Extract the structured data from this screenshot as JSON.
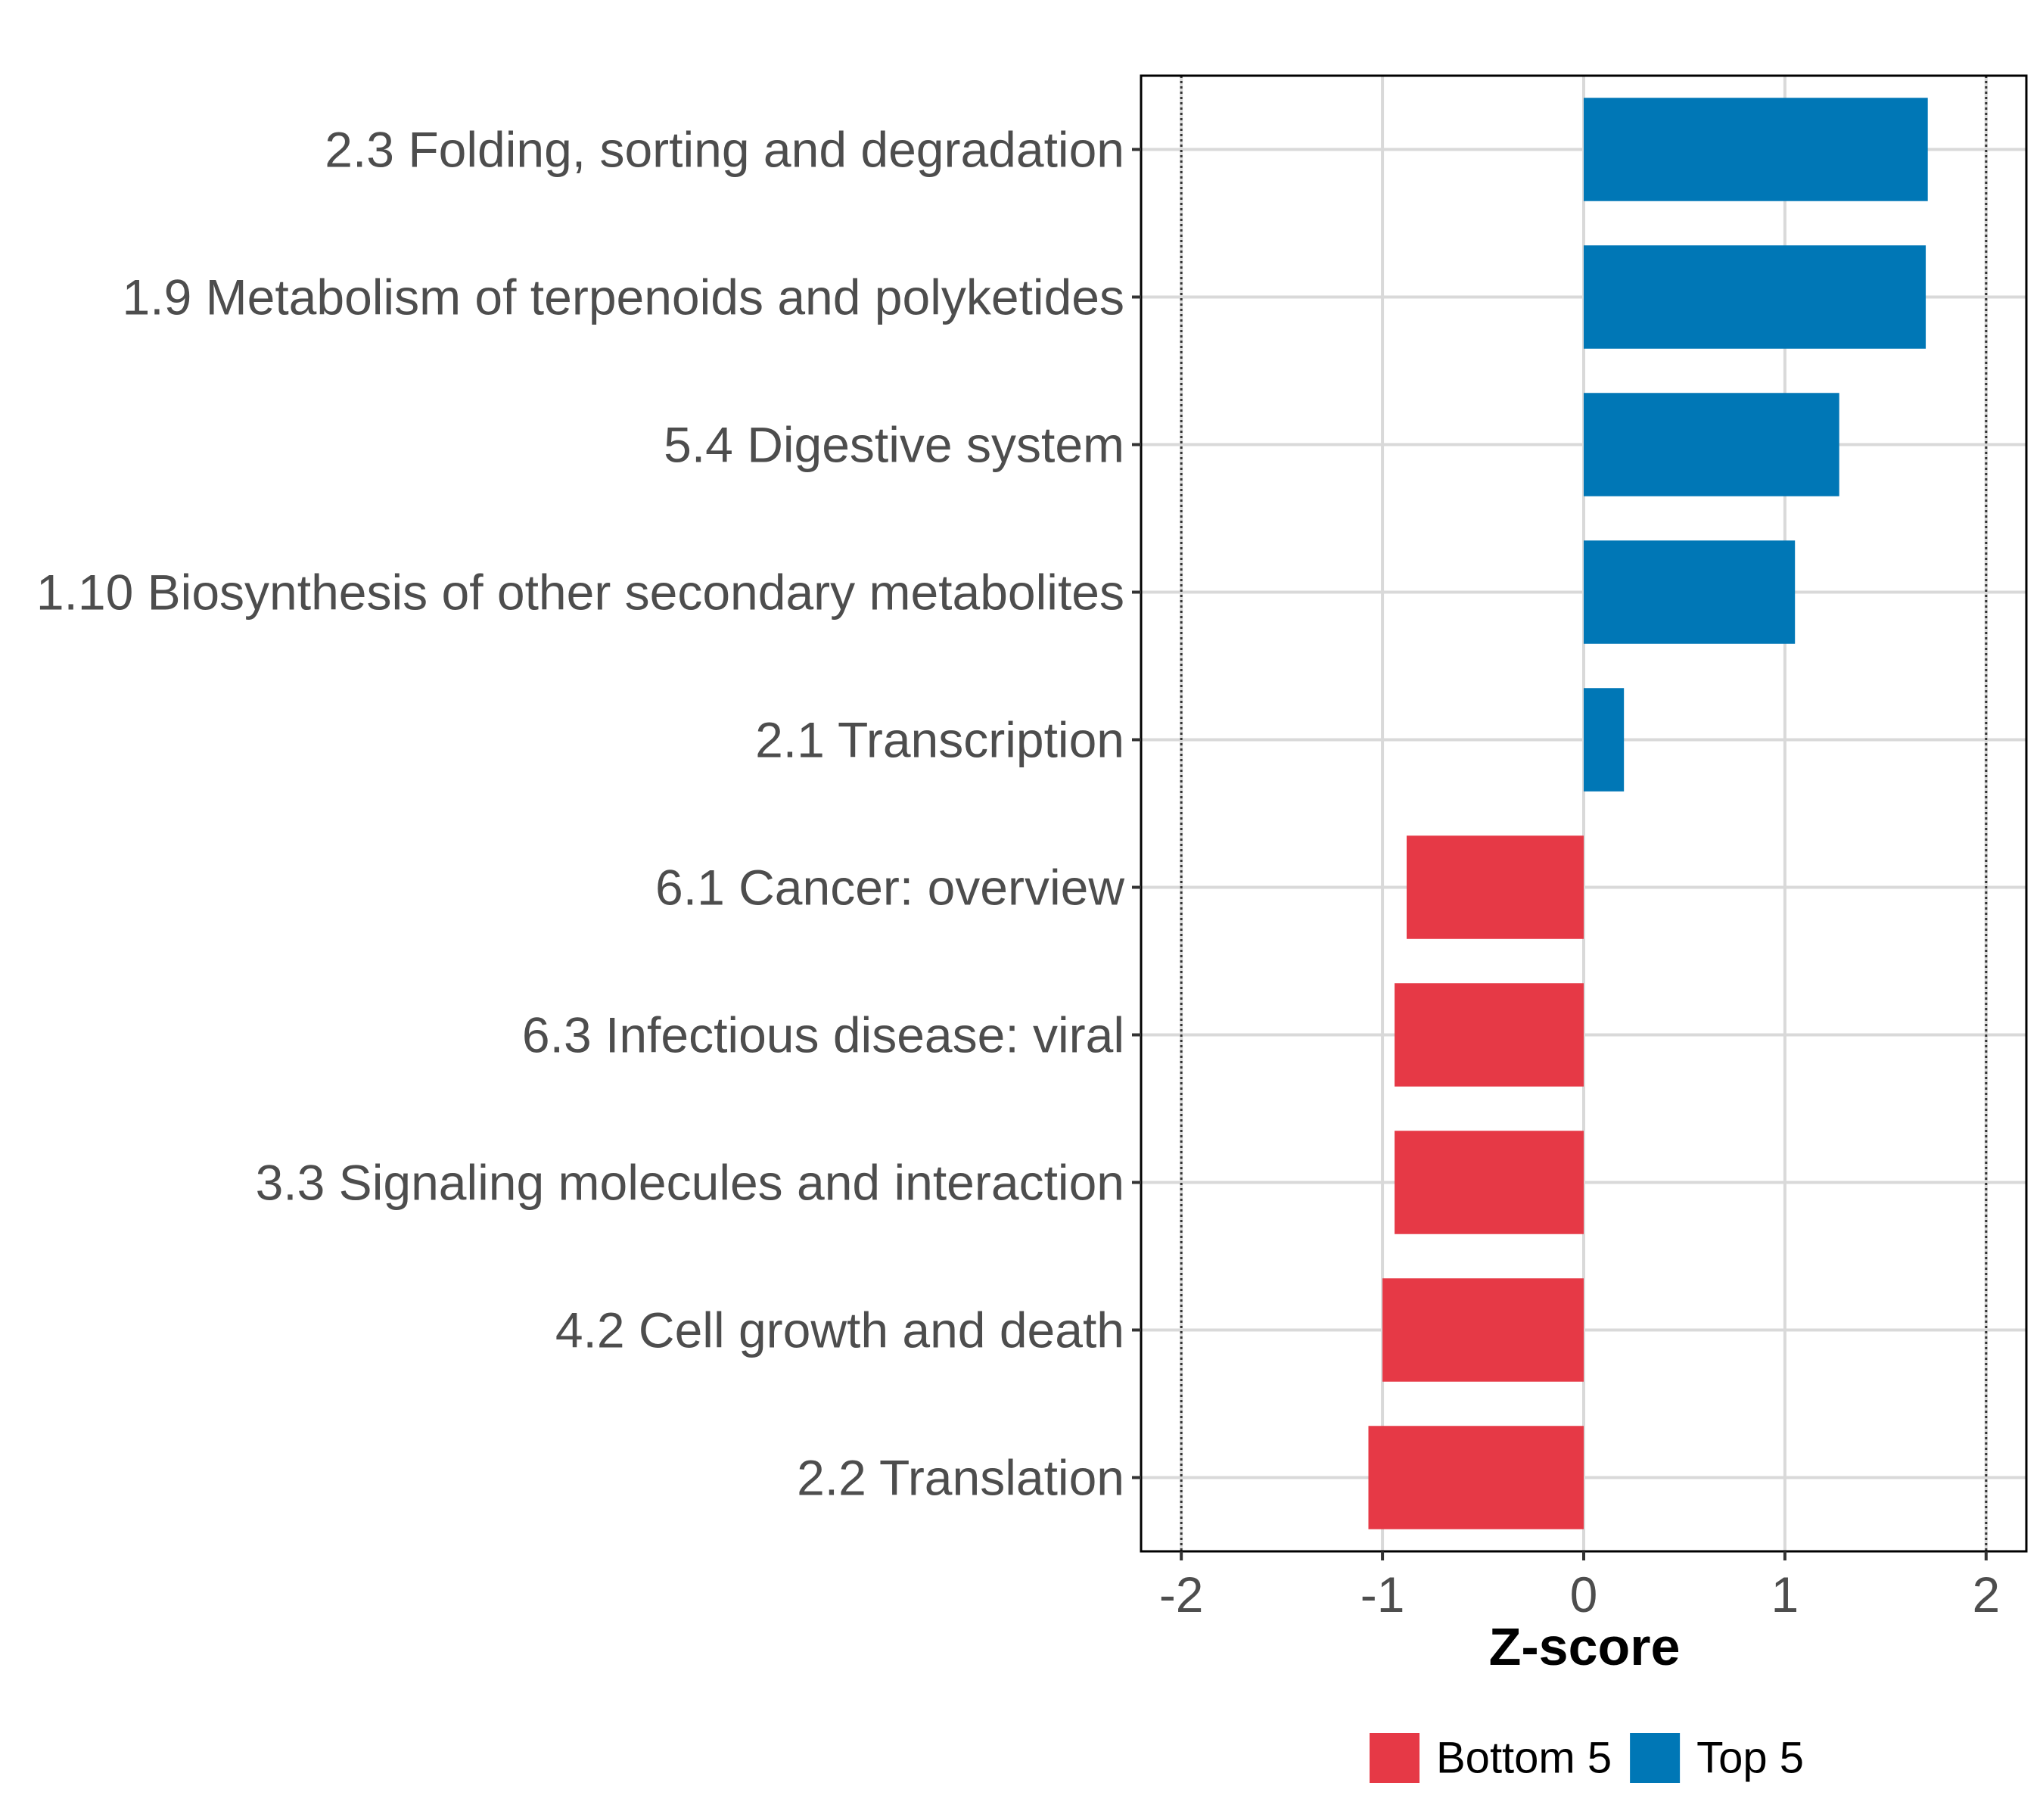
{
  "chart_data": {
    "type": "bar",
    "orientation": "horizontal",
    "categories": [
      "2.3 Folding, sorting and degradation",
      "1.9 Metabolism of terpenoids and polyketides",
      "5.4 Digestive system",
      "1.10 Biosynthesis of other secondary metabolites",
      "2.1 Transcription",
      "6.1 Cancer: overview",
      "6.3 Infectious disease: viral",
      "3.3 Signaling molecules and interaction",
      "4.2 Cell growth and death",
      "2.2 Translation"
    ],
    "values": [
      1.71,
      1.7,
      1.27,
      1.05,
      0.2,
      -0.88,
      -0.94,
      -0.94,
      -1.0,
      -1.07
    ],
    "groups": [
      "Top 5",
      "Top 5",
      "Top 5",
      "Top 5",
      "Top 5",
      "Bottom 5",
      "Bottom 5",
      "Bottom 5",
      "Bottom 5",
      "Bottom 5"
    ],
    "xlabel": "Z-score",
    "ylabel": "",
    "xlim": [
      -2.2,
      2.2
    ],
    "xticks": [
      "-2",
      "-1",
      "0",
      "1",
      "2"
    ],
    "reference_lines": [
      -2,
      2
    ],
    "grid": true,
    "legend": {
      "position": "bottom",
      "items": [
        {
          "label": "Bottom 5",
          "color": "#e63946"
        },
        {
          "label": "Top 5",
          "color": "#0077b6"
        }
      ]
    },
    "colors": {
      "Top 5": "#0077b6",
      "Bottom 5": "#e63946",
      "grid": "#d9d9d9",
      "panel_border": "#000000"
    }
  }
}
